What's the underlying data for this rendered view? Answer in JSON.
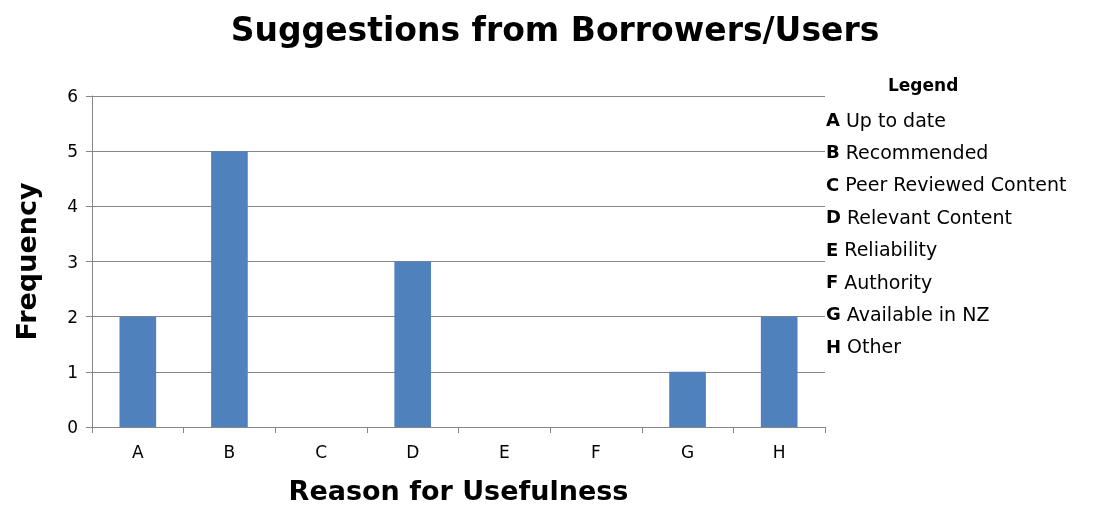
{
  "chart_data": {
    "type": "bar",
    "title": "Suggestions from Borrowers/Users",
    "xlabel": "Reason for Usefulness",
    "ylabel": "Frequency",
    "categories": [
      "A",
      "B",
      "C",
      "D",
      "E",
      "F",
      "G",
      "H"
    ],
    "values": [
      2,
      5,
      0,
      3,
      0,
      0,
      1,
      2
    ],
    "color": "#4f81bd",
    "ylim": [
      0,
      6
    ],
    "yticks": [
      0,
      1,
      2,
      3,
      4,
      5,
      6
    ],
    "grid": "y",
    "annotations": [
      "Legend",
      "A Up to date",
      "B Recommended",
      "C Peer Reviewed Content",
      "D Relevant Content",
      "E Reliability",
      "F Authority",
      "G Available in NZ",
      "H Other"
    ]
  }
}
